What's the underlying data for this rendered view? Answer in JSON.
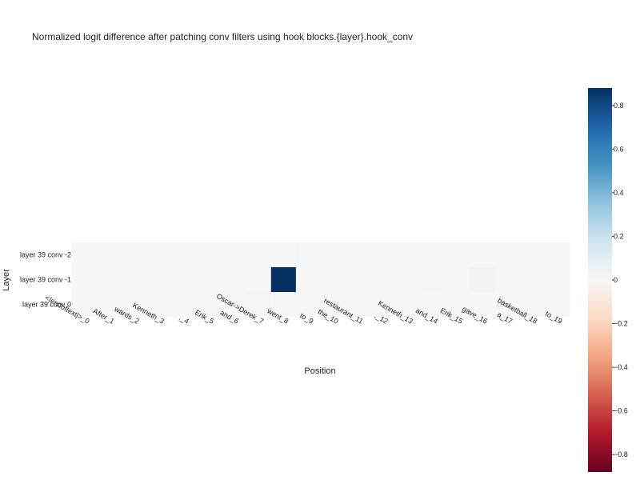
{
  "chart_data": {
    "type": "heatmap",
    "title": "Normalized logit difference after patching conv filters using hook blocks.{layer}.hook_conv",
    "xlabel": "Position",
    "ylabel": "Layer",
    "x_categories": [
      "<|endoftext|>_0",
      "After_1",
      "wards_2",
      "Kenneth_3",
      ",_4",
      "Erik_5",
      "and_6",
      "Oscar->Derek_7",
      "went_8",
      "to_9",
      "the_10",
      "restaurant_11",
      ",_12",
      "Kenneth_13",
      "and_14",
      "Erik_15",
      "gave_16",
      "a_17",
      "basketball_18",
      "to_19"
    ],
    "y_categories": [
      "layer 39 conv -2",
      "layer 39 conv -1",
      "layer 39 conv 0"
    ],
    "values": [
      [
        0,
        0,
        0,
        0,
        0,
        0,
        0,
        0,
        0,
        0.02,
        0,
        0,
        0,
        0,
        0,
        0,
        0,
        0,
        0,
        0
      ],
      [
        0,
        0,
        0,
        0,
        0,
        0,
        0,
        0,
        0.88,
        0,
        0,
        0,
        0,
        0,
        0.01,
        0,
        0.03,
        0,
        0,
        0
      ],
      [
        0,
        0,
        0,
        0,
        0,
        0,
        0,
        -0.02,
        0,
        0,
        0,
        0,
        0,
        0,
        0,
        0,
        0,
        0,
        0,
        0
      ]
    ],
    "colorscale": "RdBu",
    "zmin": -0.88,
    "zmax": 0.88,
    "colorbar_ticks": [
      0.8,
      0.6,
      0.4,
      0.2,
      0,
      -0.2,
      -0.4,
      -0.6,
      -0.8
    ],
    "colorbar_tick_labels": [
      "0.8",
      "0.6",
      "0.4",
      "0.2",
      "0",
      "−0.2",
      "−0.4",
      "−0.6",
      "−0.8"
    ]
  }
}
